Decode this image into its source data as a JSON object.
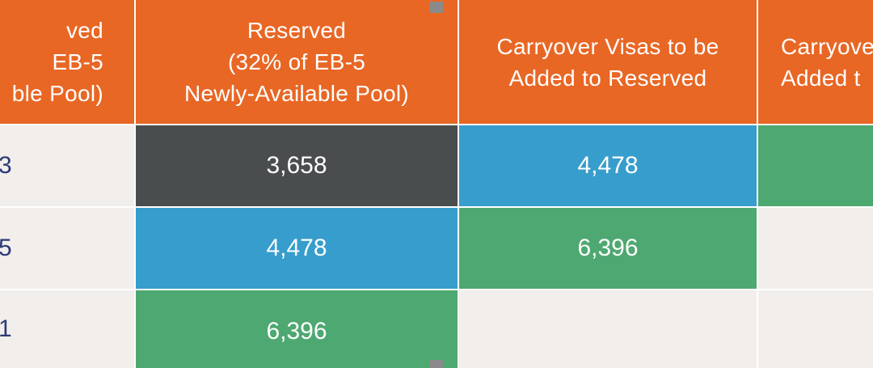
{
  "columns": [
    {
      "header_lines": [
        "ved",
        "EB-5",
        "ble Pool)"
      ]
    },
    {
      "header_lines": [
        "Reserved",
        "(32% of EB-5",
        "Newly-Available Pool)"
      ]
    },
    {
      "header_lines": [
        "Carryover Visas to be",
        "Added to Reserved"
      ]
    },
    {
      "header_lines": [
        "Carryove",
        "Added t"
      ]
    }
  ],
  "rows": [
    {
      "cells": [
        "3",
        "3,658",
        "4,478",
        ""
      ]
    },
    {
      "cells": [
        "5",
        "4,478",
        "6,396",
        ""
      ]
    },
    {
      "cells": [
        "1",
        "6,396",
        "",
        ""
      ]
    }
  ],
  "colors": {
    "header_orange": "#e86725",
    "dark_gray": "#4a4d4e",
    "blue": "#379dcc",
    "green": "#4ea871",
    "background": "#f2eeeb",
    "partial_text": "#2b3a78"
  }
}
